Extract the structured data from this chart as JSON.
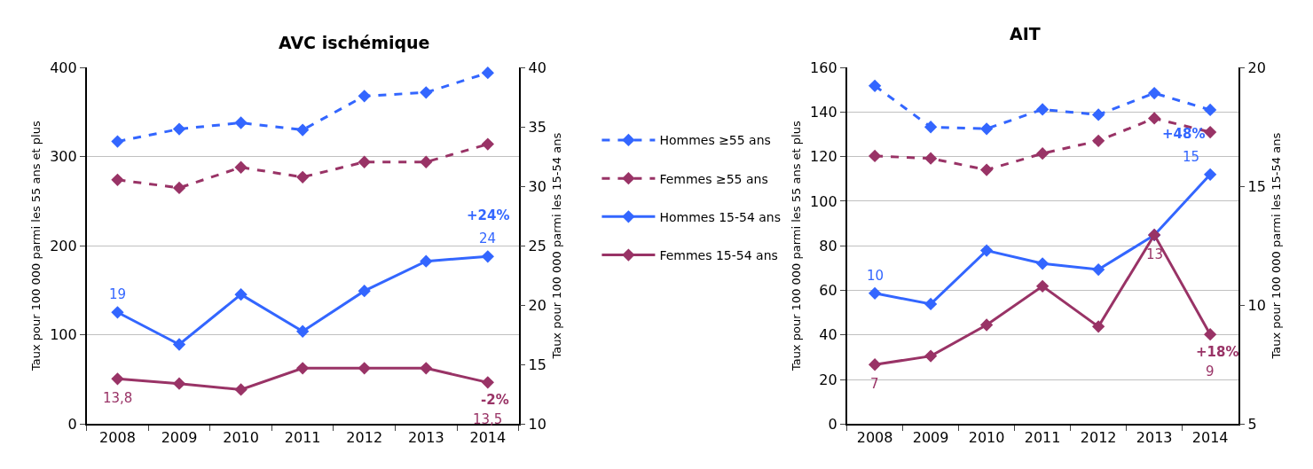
{
  "chart_data": [
    {
      "type": "line",
      "title": "AVC ischémique",
      "ylabel": "Taux pour 100 000 parmi les 55 ans et plus",
      "y2label": "Taux pour 100 000 parmi les 15-54 ans",
      "categories": [
        "2008",
        "2009",
        "2010",
        "2011",
        "2012",
        "2013",
        "2014"
      ],
      "series": [
        {
          "name": "Hommes ≥55 ans",
          "color": "#3366ff",
          "line_style": "dashed",
          "values": [
            317,
            331,
            338,
            330,
            368,
            372,
            394
          ]
        },
        {
          "name": "Femmes ≥55 ans",
          "color": "#993366",
          "line_style": "dashed",
          "values": [
            274,
            265,
            288,
            277,
            294,
            294,
            314
          ]
        },
        {
          "name": "Hommes 15-54 ans",
          "color": "#3366ff",
          "line_style": "solid",
          "axis": "y2",
          "values": [
            19.4,
            16.7,
            20.9,
            17.8,
            21.2,
            23.7,
            24.1
          ],
          "value_labels": [
            "19",
            null,
            null,
            null,
            null,
            null,
            "24"
          ]
        },
        {
          "name": "Femmes 15-54 ans",
          "color": "#993366",
          "line_style": "solid",
          "axis": "y2",
          "values": [
            13.8,
            13.4,
            12.9,
            14.7,
            14.7,
            14.7,
            13.5
          ],
          "value_labels": [
            "13,8",
            null,
            null,
            null,
            null,
            null,
            "13,5"
          ]
        }
      ],
      "ylim": [
        0,
        400
      ],
      "yticks": [
        0,
        100,
        200,
        300,
        400
      ],
      "y2lim": [
        10,
        40
      ],
      "y2ticks": [
        10,
        15,
        20,
        25,
        30,
        35,
        40
      ],
      "annotations": [
        "+24%",
        "-2%"
      ],
      "grid": "y",
      "marker": "diamond",
      "legend": "right"
    },
    {
      "type": "line",
      "title": "AIT",
      "ylabel": "Taux pour 100 000 parmi les 55 ans et plus",
      "y2label": "Taux pour 100 000 parmi les 15-54 ans",
      "categories": [
        "2008",
        "2009",
        "2010",
        "2011",
        "2012",
        "2013",
        "2014"
      ],
      "series": [
        {
          "color": "#3366ff",
          "line_style": "dashed",
          "values": [
            151.8,
            133.3,
            132.5,
            141.2,
            138.8,
            148.5,
            141
          ]
        },
        {
          "color": "#993366",
          "line_style": "dashed",
          "values": [
            120.3,
            119.2,
            114.1,
            121.4,
            127.1,
            137.2,
            131
          ]
        },
        {
          "color": "#3366ff",
          "line_style": "solid",
          "axis": "y2",
          "values": [
            10.5,
            10.05,
            12.3,
            11.75,
            11.5,
            12.95,
            15.5
          ],
          "value_labels": [
            "10",
            null,
            null,
            null,
            null,
            null,
            "15"
          ]
        },
        {
          "color": "#993366",
          "line_style": "solid",
          "axis": "y2",
          "values": [
            7.5,
            7.86,
            9.17,
            10.8,
            9.1,
            12.96,
            8.77
          ],
          "value_labels": [
            "7",
            null,
            null,
            null,
            null,
            "13",
            "9"
          ]
        }
      ],
      "ylim": [
        0,
        160
      ],
      "yticks": [
        0,
        20,
        40,
        60,
        80,
        100,
        120,
        140,
        160
      ],
      "y2lim": [
        5,
        20
      ],
      "y2ticks": [
        5,
        10,
        15,
        20
      ],
      "annotations": [
        "+48%",
        "+18%"
      ],
      "grid": "y",
      "marker": "diamond"
    }
  ]
}
